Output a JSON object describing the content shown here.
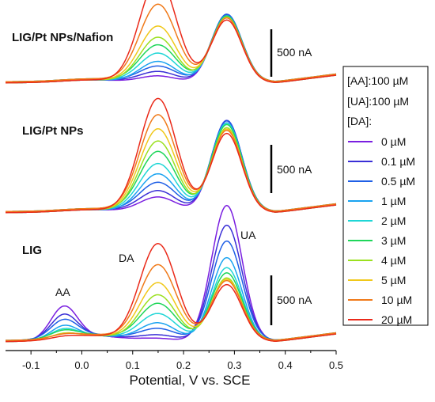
{
  "chart_data": {
    "type": "line",
    "xlabel": "Potential, V vs. SCE",
    "xlim": [
      -0.15,
      0.5
    ],
    "x_ticks": [
      "-0.1",
      "0.0",
      "0.1",
      "0.2",
      "0.3",
      "0.4",
      "0.5"
    ],
    "scale_bar_label": "500 nA",
    "legend": {
      "header": [
        "[AA]:100 µM",
        "[UA]:100 µM",
        "[DA]:"
      ],
      "entries": [
        "0 µM",
        "0.1 µM",
        "0.5 µM",
        "1 µM",
        "2 µM",
        "3 µM",
        "4 µM",
        "5 µM",
        "10 µM",
        "20 µM"
      ],
      "colors": [
        "#7a1fe0",
        "#3a2fd6",
        "#1f5fe6",
        "#1aa3f0",
        "#1fd6d6",
        "#1fd65a",
        "#9be01f",
        "#f0c81a",
        "#f07a1a",
        "#ea2a1a"
      ],
      "placement": "right"
    },
    "panels": [
      {
        "title": "LIG/Pt NPs/Nafion",
        "da_peak_nA": [
          70,
          110,
          160,
          220,
          300,
          380,
          470,
          580,
          800,
          1080
        ],
        "ua_peak_nA": [
          700,
          700,
          700,
          690,
          690,
          680,
          680,
          670,
          660,
          650
        ],
        "aa_peak_nA": [
          0,
          0,
          0,
          0,
          0,
          0,
          0,
          0,
          0,
          0
        ]
      },
      {
        "title": "LIG/Pt NPs",
        "da_peak_nA": [
          160,
          220,
          300,
          400,
          500,
          620,
          740,
          860,
          1000,
          1180
        ],
        "ua_peak_nA": [
          950,
          950,
          940,
          930,
          920,
          900,
          880,
          860,
          840,
          820
        ],
        "aa_peak_nA": [
          0,
          0,
          0,
          0,
          0,
          0,
          0,
          0,
          0,
          0
        ]
      },
      {
        "title": "LIG",
        "peak_labels": {
          "aa": "AA",
          "da": "DA",
          "ua": "UA"
        },
        "da_peak_nA": [
          30,
          60,
          120,
          190,
          280,
          380,
          480,
          600,
          780,
          1010
        ],
        "ua_peak_nA": [
          1410,
          1200,
          1030,
          870,
          760,
          700,
          660,
          640,
          620,
          590
        ],
        "aa_peak_nA": [
          330,
          240,
          180,
          130,
          90,
          70,
          50,
          40,
          30,
          20
        ]
      }
    ]
  }
}
